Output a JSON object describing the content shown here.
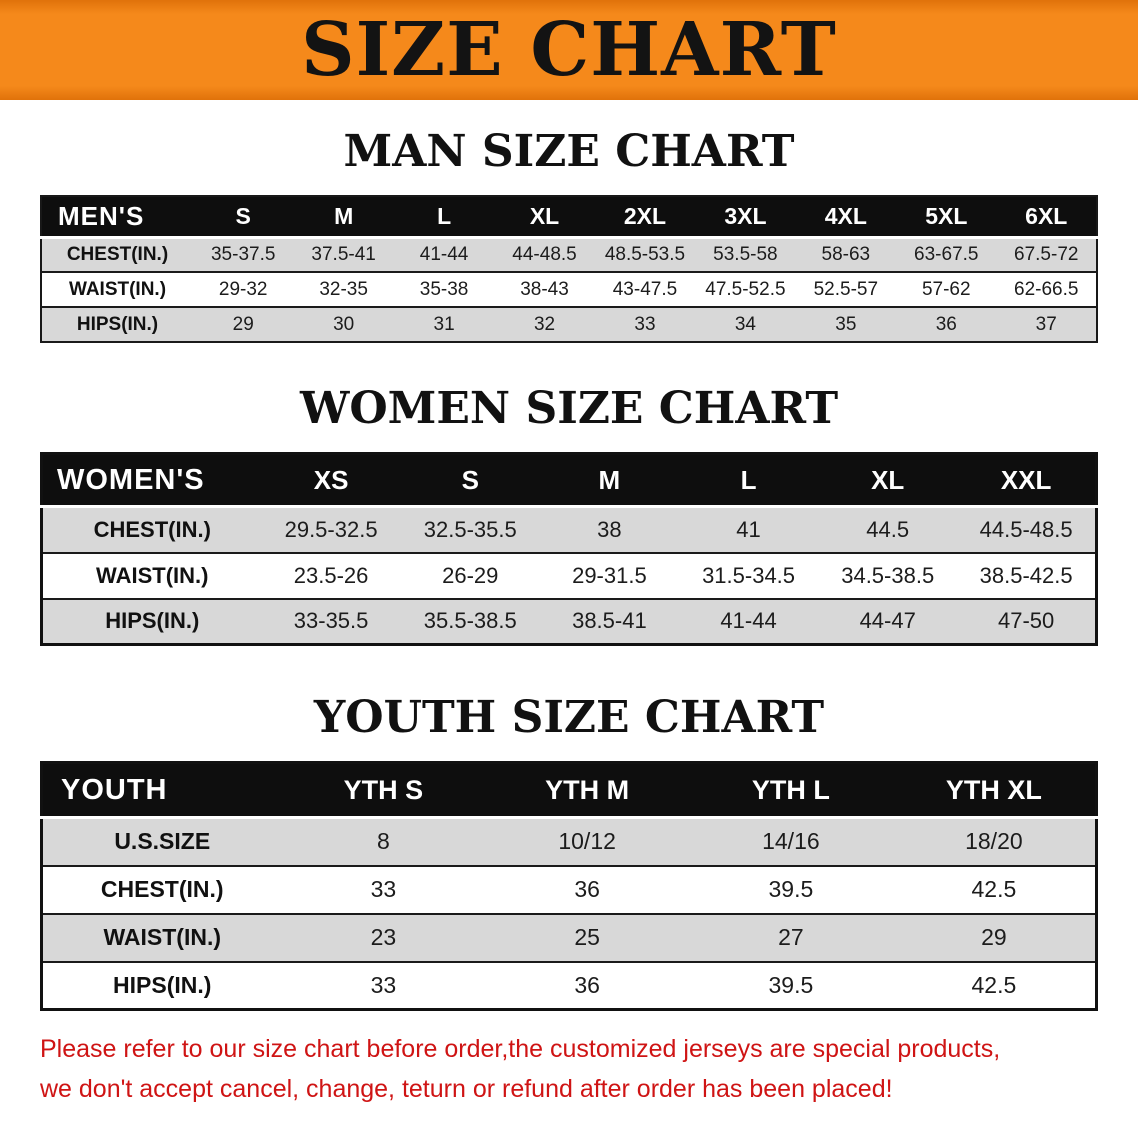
{
  "banner": {
    "title": "SIZE CHART",
    "bg_color": "#f5891b",
    "text_color": "#131313"
  },
  "sections": [
    {
      "id": "men",
      "heading": "MAN SIZE CHART",
      "table": {
        "corner": "MEN'S",
        "columns": [
          "S",
          "M",
          "L",
          "XL",
          "2XL",
          "3XL",
          "4XL",
          "5XL",
          "6XL"
        ],
        "rows": [
          {
            "label": "CHEST(IN.)",
            "values": [
              "35-37.5",
              "37.5-41",
              "41-44",
              "44-48.5",
              "48.5-53.5",
              "53.5-58",
              "58-63",
              "63-67.5",
              "67.5-72"
            ]
          },
          {
            "label": "WAIST(IN.)",
            "values": [
              "29-32",
              "32-35",
              "35-38",
              "38-43",
              "43-47.5",
              "47.5-52.5",
              "52.5-57",
              "57-62",
              "62-66.5"
            ]
          },
          {
            "label": "HIPS(IN.)",
            "values": [
              "29",
              "30",
              "31",
              "32",
              "33",
              "34",
              "35",
              "36",
              "37"
            ]
          }
        ]
      }
    },
    {
      "id": "women",
      "heading": "WOMEN SIZE CHART",
      "table": {
        "corner": "WOMEN'S",
        "columns": [
          "XS",
          "S",
          "M",
          "L",
          "XL",
          "XXL"
        ],
        "rows": [
          {
            "label": "CHEST(IN.)",
            "values": [
              "29.5-32.5",
              "32.5-35.5",
              "38",
              "41",
              "44.5",
              "44.5-48.5"
            ]
          },
          {
            "label": "WAIST(IN.)",
            "values": [
              "23.5-26",
              "26-29",
              "29-31.5",
              "31.5-34.5",
              "34.5-38.5",
              "38.5-42.5"
            ]
          },
          {
            "label": "HIPS(IN.)",
            "values": [
              "33-35.5",
              "35.5-38.5",
              "38.5-41",
              "41-44",
              "44-47",
              "47-50"
            ]
          }
        ]
      }
    },
    {
      "id": "youth",
      "heading": "YOUTH SIZE CHART",
      "table": {
        "corner": "YOUTH",
        "columns": [
          "YTH S",
          "YTH M",
          "YTH L",
          "YTH XL"
        ],
        "rows": [
          {
            "label": "U.S.SIZE",
            "values": [
              "8",
              "10/12",
              "14/16",
              "18/20"
            ]
          },
          {
            "label": "CHEST(IN.)",
            "values": [
              "33",
              "36",
              "39.5",
              "42.5"
            ]
          },
          {
            "label": "WAIST(IN.)",
            "values": [
              "23",
              "25",
              "27",
              "29"
            ]
          },
          {
            "label": "HIPS(IN.)",
            "values": [
              "33",
              "36",
              "39.5",
              "42.5"
            ]
          }
        ]
      }
    }
  ],
  "footnote": {
    "lines": [
      "Please refer to our size chart before order,the customized jerseys are special products,",
      "we don't accept cancel, change, teturn or refund after order has been placed!"
    ],
    "color": "#cf1414"
  },
  "colors": {
    "banner_bg": "#f5891b",
    "table_header_bg": "#0e0e0e",
    "row_stripe": "#d8d8d8"
  }
}
